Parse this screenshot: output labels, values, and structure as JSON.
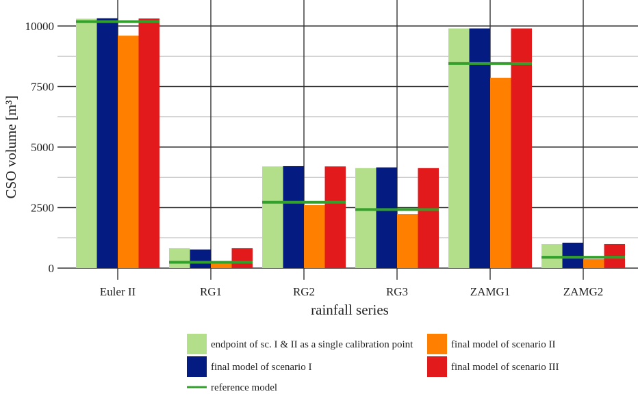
{
  "chart_data": {
    "type": "bar",
    "xlabel": "rainfall series",
    "ylabel": "CSO volume [m³]",
    "categories": [
      "Euler II",
      "RG1",
      "RG2",
      "RG3",
      "ZAMG1",
      "ZAMG2"
    ],
    "ylim": [
      0,
      10500
    ],
    "yticks": [
      0,
      2500,
      5000,
      7500,
      10000
    ],
    "ytick_labels": [
      "0",
      "2500",
      "5000",
      "7500",
      "10000"
    ],
    "grid": true,
    "legend_position": "bottom",
    "series": [
      {
        "name": "endpoint of sc. I & II as a single calibration point",
        "color": "#b3df8a",
        "values": [
          10300,
          820,
          4200,
          4130,
          9900,
          990
        ]
      },
      {
        "name": "final model of scenario I",
        "color": "#041c82",
        "values": [
          10320,
          770,
          4210,
          4160,
          9900,
          1050
        ]
      },
      {
        "name": "final model of scenario II",
        "color": "#ff7f00",
        "values": [
          9600,
          290,
          2600,
          2230,
          7860,
          370
        ]
      },
      {
        "name": "final model of scenario III",
        "color": "#e31a1c",
        "values": [
          10310,
          820,
          4200,
          4130,
          9900,
          990
        ]
      }
    ],
    "reference": {
      "name": "reference model",
      "color": "#33a02c",
      "values": [
        10180,
        240,
        2720,
        2420,
        8450,
        450
      ]
    }
  }
}
